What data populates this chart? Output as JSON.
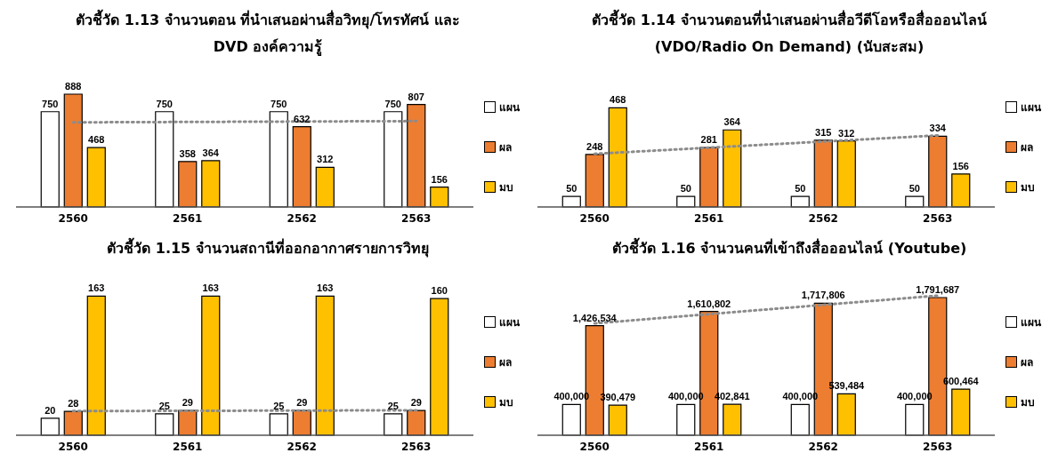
{
  "chart_data": [
    {
      "type": "bar",
      "title": "ตัวชี้วัด 1.13 จำนวนตอน ที่นำเสนอผ่านสื่อวิทยุ/โทรทัศน์ และ DVD องค์ความรู้",
      "categories": [
        "2560",
        "2561",
        "2562",
        "2563"
      ],
      "series": [
        {
          "name": "แผน",
          "color": "#ffffff",
          "values": [
            750,
            750,
            750,
            750
          ],
          "value_labels": [
            "750",
            "750",
            "750",
            "750"
          ]
        },
        {
          "name": "ผล",
          "color": "#ed7d31",
          "values": [
            888,
            358,
            632,
            807
          ],
          "value_labels": [
            "888",
            "358",
            "632",
            "807"
          ]
        },
        {
          "name": "มบ",
          "color": "#ffc000",
          "values": [
            468,
            364,
            312,
            156
          ],
          "value_labels": [
            "468",
            "364",
            "312",
            "156"
          ]
        },
        {
          "type": "line",
          "values": [
            666,
            null,
            null,
            676
          ],
          "value_labels": [
            null,
            null,
            null,
            null
          ],
          "color": "#8c8c8c",
          "line_style": "dotted",
          "marker": "none"
        }
      ],
      "legend": "right",
      "tick_labels": "x"
    },
    {
      "type": "bar",
      "title": "ตัวชี้วัด 1.14 จำนวนตอนที่นำเสนอผ่านสื่อวีดีโอหรือสื่อออนไลน์ (VDO/Radio On Demand) (นับสะสม)",
      "categories": [
        "2560",
        "2561",
        "2562",
        "2563"
      ],
      "series": [
        {
          "name": "แผน",
          "color": "#ffffff",
          "values": [
            50,
            50,
            50,
            50
          ],
          "value_labels": [
            "50",
            "50",
            "50",
            "50"
          ]
        },
        {
          "name": "ผล",
          "color": "#ed7d31",
          "values": [
            248,
            281,
            315,
            334
          ],
          "value_labels": [
            "248",
            "281",
            "315",
            "334"
          ]
        },
        {
          "name": "มบ",
          "color": "#ffc000",
          "values": [
            468,
            364,
            312,
            156
          ],
          "value_labels": [
            "468",
            "364",
            "312",
            "156"
          ]
        },
        {
          "type": "line",
          "values": [
            251,
            null,
            null,
            338
          ],
          "value_labels": [
            null,
            null,
            null,
            null
          ],
          "color": "#8c8c8c",
          "line_style": "dotted",
          "marker": "none"
        }
      ],
      "legend": "right",
      "tick_labels": "x"
    },
    {
      "type": "bar",
      "title": "ตัวชี้วัด 1.15 จำนวนสถานีที่ออกอากาศรายการวิทยุ",
      "categories": [
        "2560",
        "2561",
        "2562",
        "2563"
      ],
      "series": [
        {
          "name": "แผน",
          "color": "#ffffff",
          "values": [
            20,
            25,
            25,
            25
          ],
          "value_labels": [
            "20",
            "25",
            "25",
            "25"
          ]
        },
        {
          "name": "ผล",
          "color": "#ed7d31",
          "values": [
            28,
            29,
            29,
            29
          ],
          "value_labels": [
            "28",
            "29",
            "29",
            "29"
          ]
        },
        {
          "name": "มบ",
          "color": "#ffc000",
          "values": [
            163,
            163,
            163,
            160
          ],
          "value_labels": [
            "163",
            "163",
            "163",
            "160"
          ]
        },
        {
          "type": "line",
          "values": [
            28.3,
            null,
            null,
            29.2
          ],
          "value_labels": [
            null,
            null,
            null,
            null
          ],
          "color": "#8c8c8c",
          "line_style": "dotted",
          "marker": "none"
        }
      ],
      "legend": "right",
      "tick_labels": "x"
    },
    {
      "type": "bar",
      "title": "ตัวชี้วัด 1.16 จำนวนคนที่เข้าถึงสื่อออนไลน์ (Youtube)",
      "categories": [
        "2560",
        "2561",
        "2562",
        "2563"
      ],
      "series": [
        {
          "name": "แผน",
          "color": "#ffffff",
          "values": [
            400000,
            400000,
            400000,
            400000
          ],
          "value_labels": [
            "400,000",
            "400,000",
            "400,000",
            "400,000"
          ]
        },
        {
          "name": "ผล",
          "color": "#ed7d31",
          "values": [
            1426534,
            1610802,
            1717806,
            1791687
          ],
          "value_labels": [
            "1,426,534",
            "1,610,802",
            "1,717,806",
            "1,791,687"
          ]
        },
        {
          "name": "มบ",
          "color": "#ffc000",
          "values": [
            390479,
            402841,
            539484,
            600464
          ],
          "value_labels": [
            "390,479",
            "402,841",
            "539,484",
            "600,464"
          ]
        },
        {
          "type": "line",
          "values": [
            1456000,
            null,
            null,
            1817000
          ],
          "value_labels": [
            null,
            null,
            null,
            null
          ],
          "color": "#8c8c8c",
          "line_style": "dotted",
          "marker": "none"
        }
      ],
      "legend": "right",
      "tick_labels": "x"
    }
  ]
}
